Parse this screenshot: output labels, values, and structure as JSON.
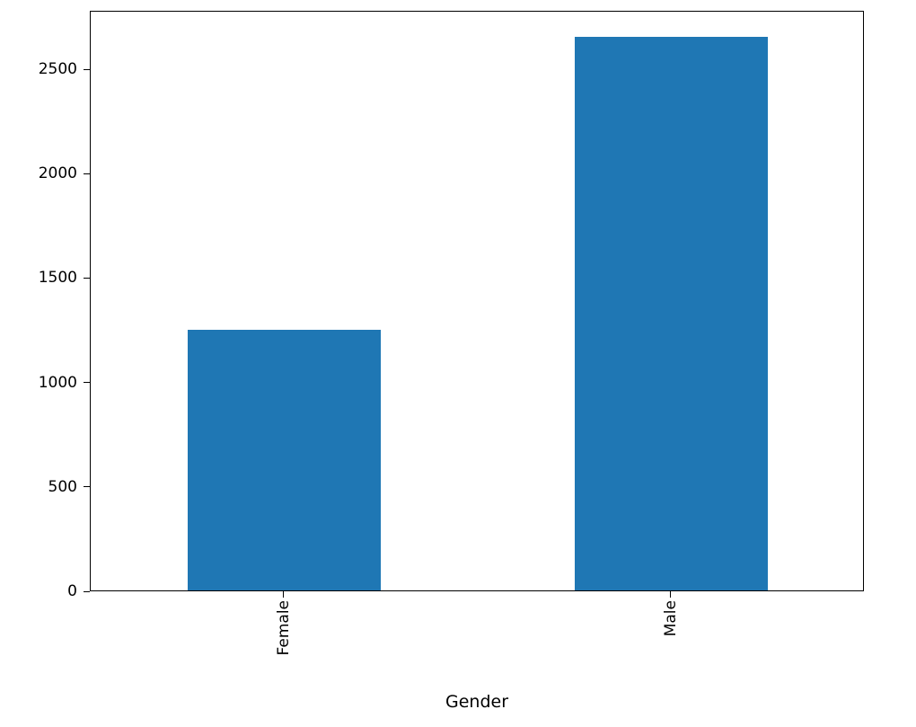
{
  "chart_data": {
    "type": "bar",
    "title": "",
    "xlabel": "Gender",
    "ylabel": "",
    "categories": [
      "Female",
      "Male"
    ],
    "values": [
      1250,
      2650
    ],
    "ylim": [
      0,
      2780
    ],
    "yticks": [
      0,
      500,
      1000,
      1500,
      2000,
      2500
    ],
    "bar_color": "#1f77b4",
    "bar_width_fraction": 0.5,
    "grid": false,
    "legend": "none",
    "tick_label_rotation": 90
  }
}
